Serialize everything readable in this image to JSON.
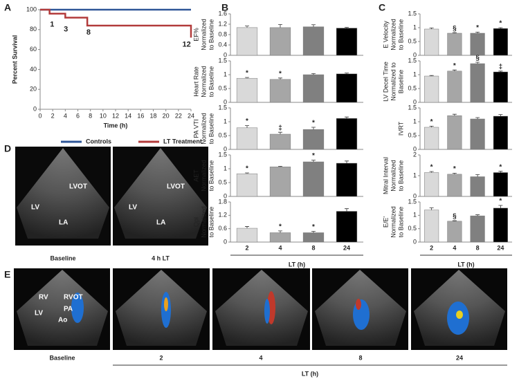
{
  "panel_labels": [
    "A",
    "B",
    "C",
    "D",
    "E"
  ],
  "chart_data": [
    {
      "type": "line",
      "xlabel": "Time (h)",
      "ylabel": "Percent Survival",
      "xlim": [
        0,
        24
      ],
      "xticks": [
        0,
        2,
        4,
        6,
        8,
        10,
        12,
        14,
        16,
        18,
        20,
        22,
        24
      ],
      "ylim": [
        0,
        100
      ],
      "yticks": [
        0,
        20,
        40,
        60,
        80,
        100
      ],
      "legend": "bottom",
      "series": [
        {
          "name": "Controls",
          "color": "#2e5597",
          "x": [
            0,
            24
          ],
          "values": [
            100,
            100
          ]
        },
        {
          "name": "LT Treatment",
          "color": "#b23a3a",
          "x": [
            0,
            1.5,
            1.5,
            4,
            4,
            7.5,
            7.5,
            24,
            24
          ],
          "values": [
            100,
            100,
            96,
            96,
            92,
            92,
            84,
            84,
            72
          ]
        }
      ],
      "annotations": [
        {
          "text": "1",
          "x": 1.9,
          "y": 85
        },
        {
          "text": "3",
          "x": 4.1,
          "y": 80
        },
        {
          "text": "8",
          "x": 7.7,
          "y": 77
        },
        {
          "text": "12",
          "x": 23.3,
          "y": 65
        }
      ]
    },
    {
      "type": "bar",
      "ylabel": [
        "EF%",
        "Normalized",
        "to Baseline"
      ],
      "ylim": [
        0,
        1.6
      ],
      "yticks": [
        0,
        0.4,
        0.8,
        1.2,
        1.6
      ],
      "colors": [
        "#d9d9d9",
        "#a6a6a6",
        "#808080",
        "#000000"
      ],
      "values": [
        1.07,
        1.07,
        1.1,
        1.05
      ],
      "errors": [
        0.06,
        0.12,
        0.08,
        0.03
      ],
      "annotations": [
        null,
        null,
        null,
        null
      ]
    },
    {
      "type": "bar",
      "ylabel": [
        "Heart Rate",
        "Normalized",
        "to Baseline"
      ],
      "ylim": [
        0,
        1.5
      ],
      "yticks": [
        0,
        0.5,
        1,
        1.5
      ],
      "colors": [
        "#d9d9d9",
        "#a6a6a6",
        "#808080",
        "#000000"
      ],
      "values": [
        0.87,
        0.83,
        1.0,
        1.03
      ],
      "errors": [
        0.03,
        0.05,
        0.04,
        0.03
      ],
      "annotations": [
        "*",
        "*",
        null,
        null
      ]
    },
    {
      "type": "bar",
      "ylabel": [
        "PA VTI",
        "Normalized",
        "to Baseline"
      ],
      "ylim": [
        0,
        1.5
      ],
      "yticks": [
        0,
        0.5,
        1,
        1.5
      ],
      "colors": [
        "#d9d9d9",
        "#a6a6a6",
        "#808080",
        "#000000"
      ],
      "values": [
        0.78,
        0.55,
        0.72,
        1.12
      ],
      "errors": [
        0.08,
        0.07,
        0.08,
        0.05
      ],
      "annotations": [
        "*",
        "‡",
        "*",
        null
      ]
    },
    {
      "type": "bar",
      "ylabel": [
        "AET",
        "Normalized",
        "to Baseline"
      ],
      "ylim": [
        0,
        1.5
      ],
      "yticks": [
        0,
        0.5,
        1,
        1.5
      ],
      "colors": [
        "#d9d9d9",
        "#a6a6a6",
        "#808080",
        "#000000"
      ],
      "values": [
        0.82,
        1.07,
        1.25,
        1.2
      ],
      "errors": [
        0.03,
        0.02,
        0.06,
        0.08
      ],
      "annotations": [
        "*",
        null,
        "*",
        null
      ]
    },
    {
      "type": "bar",
      "ylabel": [
        "Qpl",
        "Normalized",
        "to Baseline"
      ],
      "ylim": [
        0,
        1.8
      ],
      "yticks": [
        0,
        0.6,
        1.2,
        1.8
      ],
      "colors": [
        "#d9d9d9",
        "#a6a6a6",
        "#808080",
        "#000000"
      ],
      "values": [
        0.62,
        0.42,
        0.42,
        1.38
      ],
      "errors": [
        0.08,
        0.08,
        0.06,
        0.12
      ],
      "annotations": [
        null,
        "*",
        "*",
        null
      ],
      "categories": [
        "2",
        "4",
        "8",
        "24"
      ],
      "xlabel": "LT (h)"
    },
    {
      "type": "bar",
      "ylabel": [
        "E Velocity",
        "Normalized",
        "to Baseline"
      ],
      "ylim": [
        0,
        1.5
      ],
      "yticks": [
        0,
        0.5,
        1,
        1.5
      ],
      "colors": [
        "#d9d9d9",
        "#a6a6a6",
        "#808080",
        "#000000"
      ],
      "values": [
        0.95,
        0.8,
        0.8,
        0.97
      ],
      "errors": [
        0.04,
        0.02,
        0.04,
        0.03
      ],
      "annotations": [
        null,
        "§",
        "*",
        "*"
      ]
    },
    {
      "type": "bar",
      "ylabel": [
        "LV Decel Time",
        "Normalized to",
        "Baseline"
      ],
      "ylim": [
        0,
        1.5
      ],
      "yticks": [
        0,
        0.5,
        1,
        1.5
      ],
      "colors": [
        "#d9d9d9",
        "#a6a6a6",
        "#808080",
        "#000000"
      ],
      "values": [
        0.95,
        1.13,
        1.4,
        1.1
      ],
      "errors": [
        0.02,
        0.04,
        0.05,
        0.03
      ],
      "annotations": [
        null,
        "*",
        "§",
        "‡"
      ]
    },
    {
      "type": "bar",
      "ylabel": [
        "IVRT"
      ],
      "ylim": [
        0,
        1.5
      ],
      "yticks": [
        0,
        0.5,
        1,
        1.5
      ],
      "colors": [
        "#d9d9d9",
        "#a6a6a6",
        "#808080",
        "#000000"
      ],
      "values": [
        0.8,
        1.22,
        1.1,
        1.2
      ],
      "errors": [
        0.04,
        0.05,
        0.05,
        0.06
      ],
      "annotations": [
        "*",
        null,
        null,
        null
      ]
    },
    {
      "type": "bar",
      "ylabel": [
        "Mitral Interval",
        "Normalized",
        "to Baseline"
      ],
      "ylim": [
        0,
        2
      ],
      "yticks": [
        0,
        1,
        2
      ],
      "colors": [
        "#d9d9d9",
        "#a6a6a6",
        "#808080",
        "#000000"
      ],
      "values": [
        1.15,
        1.07,
        0.95,
        1.15
      ],
      "errors": [
        0.05,
        0.05,
        0.1,
        0.06
      ],
      "annotations": [
        "*",
        "*",
        null,
        "*"
      ]
    },
    {
      "type": "bar",
      "ylabel": [
        "E/E'",
        "Normalized",
        "to Baseline"
      ],
      "ylim": [
        0,
        1.5
      ],
      "yticks": [
        0,
        0.5,
        1,
        1.5
      ],
      "colors": [
        "#d9d9d9",
        "#a6a6a6",
        "#808080",
        "#000000"
      ],
      "values": [
        1.2,
        0.78,
        0.98,
        1.27
      ],
      "errors": [
        0.08,
        0.02,
        0.04,
        0.1
      ],
      "annotations": [
        null,
        "§",
        null,
        "*"
      ],
      "categories": [
        "2",
        "4",
        "8",
        "24"
      ],
      "xlabel": "LT (h)"
    }
  ],
  "panel_d": {
    "images": [
      {
        "caption": "Baseline",
        "labels": [
          "LV",
          "LVOT",
          "LA"
        ]
      },
      {
        "caption": "4 h LT",
        "labels": [
          "LV",
          "LVOT",
          "LA"
        ]
      }
    ]
  },
  "panel_e": {
    "captions": [
      "Baseline",
      "2",
      "4",
      "8",
      "24"
    ],
    "baseline_labels": [
      "RV",
      "RVOT",
      "PA",
      "LV",
      "Ao"
    ],
    "xlabel": "LT (h)"
  }
}
